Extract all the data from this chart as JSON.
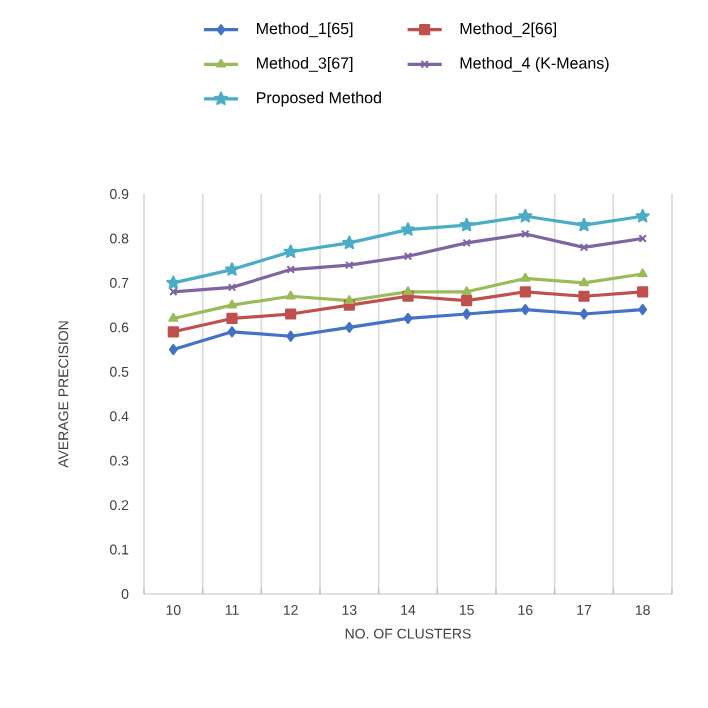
{
  "chart_data": {
    "type": "line",
    "xlabel": "NO. OF CLUSTERS",
    "ylabel": "AVERAGE PRECISION",
    "categories": [
      "10",
      "11",
      "12",
      "13",
      "14",
      "15",
      "16",
      "17",
      "18"
    ],
    "ylim": [
      0,
      0.9
    ],
    "yticks": [
      0,
      0.1,
      0.2,
      0.3,
      0.4,
      0.5,
      0.6,
      0.7,
      0.8,
      0.9
    ],
    "grid": "x",
    "legend": "top",
    "series": [
      {
        "name": "Method_1[65]",
        "color": "#4472c4",
        "marker": "diamond",
        "values": [
          0.55,
          0.59,
          0.58,
          0.6,
          0.62,
          0.63,
          0.64,
          0.63,
          0.64
        ]
      },
      {
        "name": "Method_2[66]",
        "color": "#c0504d",
        "marker": "square",
        "values": [
          0.59,
          0.62,
          0.63,
          0.65,
          0.67,
          0.66,
          0.68,
          0.67,
          0.68
        ]
      },
      {
        "name": "Method_3[67]",
        "color": "#9bbb59",
        "marker": "triangle",
        "values": [
          0.62,
          0.65,
          0.67,
          0.66,
          0.68,
          0.68,
          0.71,
          0.7,
          0.72
        ]
      },
      {
        "name": "Method_4 (K-Means)",
        "color": "#8064a2",
        "marker": "cross",
        "values": [
          0.68,
          0.69,
          0.73,
          0.74,
          0.76,
          0.79,
          0.81,
          0.78,
          0.8
        ]
      },
      {
        "name": "Proposed Method",
        "color": "#4bacc6",
        "marker": "star",
        "values": [
          0.7,
          0.73,
          0.77,
          0.79,
          0.82,
          0.83,
          0.85,
          0.83,
          0.85
        ]
      }
    ]
  }
}
